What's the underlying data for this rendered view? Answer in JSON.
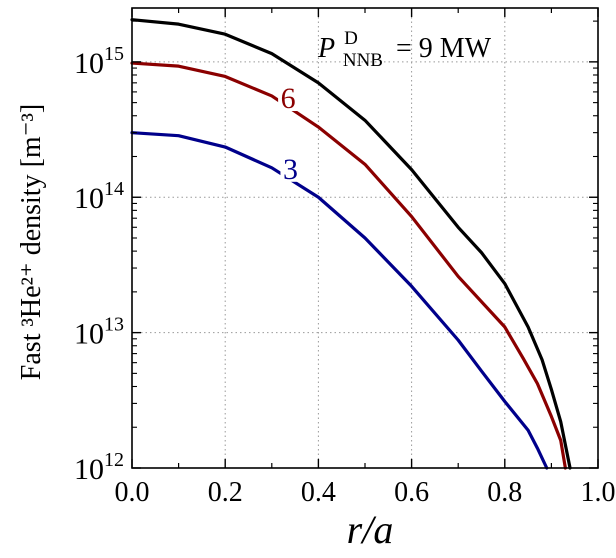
{
  "chart_data": {
    "type": "line",
    "xlabel": "r/a",
    "ylabel": "Fast ³He²⁺ density [m⁻³]",
    "xlim": [
      0.0,
      1.0
    ],
    "ylim": [
      1000000000000.0,
      2500000000000000.0
    ],
    "yscale": "log",
    "grid": true,
    "x_ticks": [
      "0.0",
      "0.2",
      "0.4",
      "0.6",
      "0.8",
      "1.0"
    ],
    "y_ticks": [
      {
        "value": 1000000000000.0,
        "base": "10",
        "exp": "12"
      },
      {
        "value": 10000000000000.0,
        "base": "10",
        "exp": "13"
      },
      {
        "value": 100000000000000.0,
        "base": "10",
        "exp": "14"
      },
      {
        "value": 1000000000000000.0,
        "base": "10",
        "exp": "15"
      }
    ],
    "annotation": {
      "symbol": "P",
      "superscript": "D",
      "subscript": "NNB",
      "text": "= 9 MW"
    },
    "series": [
      {
        "label": "9 MW",
        "color": "#000000",
        "points": [
          [
            0.0,
            2050000000000000.0
          ],
          [
            0.1,
            1900000000000000.0
          ],
          [
            0.2,
            1600000000000000.0
          ],
          [
            0.3,
            1150000000000000.0
          ],
          [
            0.4,
            700000000000000.0
          ],
          [
            0.5,
            370000000000000.0
          ],
          [
            0.6,
            160000000000000.0
          ],
          [
            0.7,
            60000000000000.0
          ],
          [
            0.75,
            39000000000000.0
          ],
          [
            0.8,
            23000000000000.0
          ],
          [
            0.85,
            11000000000000.0
          ],
          [
            0.88,
            6300000000000.0
          ],
          [
            0.9,
            3800000000000.0
          ],
          [
            0.92,
            2200000000000.0
          ],
          [
            0.94,
            1000000000000.0
          ]
        ]
      },
      {
        "label": "6",
        "color": "#8b0000",
        "points": [
          [
            0.0,
            980000000000000.0
          ],
          [
            0.1,
            930000000000000.0
          ],
          [
            0.2,
            780000000000000.0
          ],
          [
            0.3,
            560000000000000.0
          ],
          [
            0.4,
            330000000000000.0
          ],
          [
            0.5,
            175000000000000.0
          ],
          [
            0.6,
            72000000000000.0
          ],
          [
            0.7,
            26000000000000.0
          ],
          [
            0.8,
            11000000000000.0
          ],
          [
            0.84,
            6400000000000.0
          ],
          [
            0.87,
            4200000000000.0
          ],
          [
            0.9,
            2400000000000.0
          ],
          [
            0.92,
            1600000000000.0
          ],
          [
            0.93,
            1000000000000.0
          ]
        ]
      },
      {
        "label": "3",
        "color": "#00008b",
        "points": [
          [
            0.0,
            300000000000000.0
          ],
          [
            0.1,
            285000000000000.0
          ],
          [
            0.2,
            235000000000000.0
          ],
          [
            0.3,
            165000000000000.0
          ],
          [
            0.4,
            100000000000000.0
          ],
          [
            0.5,
            50000000000000.0
          ],
          [
            0.6,
            22000000000000.0
          ],
          [
            0.7,
            8800000000000.0
          ],
          [
            0.75,
            5200000000000.0
          ],
          [
            0.8,
            3100000000000.0
          ],
          [
            0.85,
            1900000000000.0
          ],
          [
            0.87,
            1400000000000.0
          ],
          [
            0.89,
            1000000000000.0
          ]
        ]
      }
    ],
    "curve_labels": [
      {
        "text": "6",
        "x": 0.335,
        "y": 550000000000000.0,
        "color": "#8b0000"
      },
      {
        "text": "3",
        "x": 0.34,
        "y": 165000000000000.0,
        "color": "#00008b"
      }
    ]
  }
}
